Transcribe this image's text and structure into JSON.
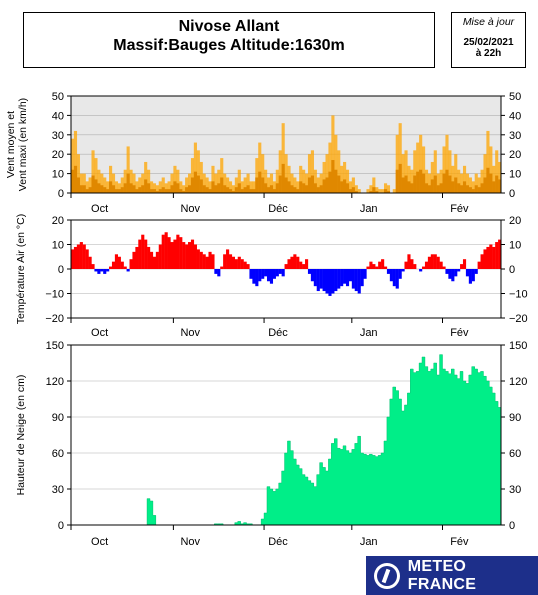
{
  "header": {
    "title_line1": "Nivose Allant",
    "title_line2": "Massif:Bauges Altitude:1630m",
    "update_label": "Mise à jour",
    "update_date": "25/02/2021",
    "update_time": "à 22h"
  },
  "logo": {
    "text": "METEO FRANCE",
    "icon": "meteo-france-logo-icon"
  },
  "chart_data": [
    {
      "type": "bar",
      "name": "wind",
      "ylabel_lines": [
        "Vent moyen et",
        "Vent maxi (en km/h)"
      ],
      "ylim": [
        0,
        50
      ],
      "yticks": [
        0,
        10,
        20,
        30,
        40,
        50
      ],
      "xtick_labels": [
        "Oct",
        "Nov",
        "Déc",
        "Jan",
        "Fév"
      ],
      "xtick_positions_days": [
        19,
        50,
        80,
        111,
        142
      ],
      "days": 147,
      "background": "#e8e8e8",
      "color": "#ffa500",
      "values_max": [
        28,
        32,
        20,
        10,
        10,
        6,
        8,
        22,
        18,
        12,
        10,
        8,
        6,
        14,
        10,
        6,
        5,
        8,
        12,
        24,
        12,
        10,
        6,
        8,
        10,
        16,
        12,
        6,
        5,
        4,
        6,
        8,
        5,
        6,
        10,
        14,
        12,
        6,
        4,
        8,
        10,
        18,
        26,
        22,
        16,
        10,
        8,
        6,
        14,
        10,
        12,
        18,
        10,
        8,
        6,
        4,
        8,
        12,
        6,
        8,
        10,
        6,
        6,
        18,
        26,
        20,
        12,
        8,
        10,
        6,
        12,
        22,
        36,
        20,
        14,
        10,
        8,
        6,
        14,
        12,
        10,
        20,
        22,
        12,
        8,
        10,
        16,
        20,
        26,
        40,
        30,
        22,
        14,
        16,
        12,
        6,
        8,
        4,
        2,
        0,
        0,
        2,
        4,
        8,
        3,
        2,
        2,
        5,
        4,
        0,
        2,
        30,
        36,
        20,
        22,
        14,
        12,
        22,
        26,
        30,
        24,
        12,
        10,
        16,
        22,
        10,
        12,
        24,
        30,
        22,
        14,
        20,
        12,
        10,
        14,
        10,
        8,
        6,
        10,
        8,
        12,
        20,
        32,
        24,
        14,
        22,
        16
      ],
      "values_mean": [
        12,
        14,
        8,
        4,
        4,
        2,
        3,
        9,
        7,
        5,
        4,
        3,
        2,
        6,
        4,
        2,
        2,
        3,
        5,
        10,
        5,
        4,
        2,
        3,
        4,
        7,
        5,
        2,
        2,
        1,
        2,
        3,
        2,
        2,
        4,
        6,
        5,
        2,
        1,
        3,
        4,
        8,
        11,
        9,
        7,
        4,
        3,
        2,
        6,
        4,
        5,
        8,
        4,
        3,
        2,
        1,
        3,
        5,
        2,
        3,
        4,
        2,
        2,
        8,
        11,
        8,
        5,
        3,
        4,
        2,
        5,
        9,
        15,
        8,
        6,
        4,
        3,
        2,
        6,
        5,
        4,
        8,
        9,
        5,
        3,
        4,
        7,
        8,
        11,
        17,
        12,
        9,
        6,
        7,
        5,
        2,
        3,
        1,
        0,
        0,
        0,
        0,
        1,
        3,
        1,
        0,
        0,
        2,
        1,
        0,
        0,
        12,
        15,
        8,
        9,
        6,
        5,
        9,
        11,
        12,
        10,
        5,
        4,
        7,
        9,
        4,
        5,
        10,
        12,
        9,
        6,
        8,
        5,
        4,
        6,
        4,
        3,
        2,
        4,
        3,
        5,
        8,
        13,
        10,
        6,
        9,
        7
      ]
    },
    {
      "type": "bar",
      "name": "temperature",
      "ylabel_lines": [
        "Température Air (en °C)"
      ],
      "ylim": [
        -20,
        20
      ],
      "yticks": [
        -20,
        -10,
        0,
        10,
        20
      ],
      "xtick_labels": [
        "Oct",
        "Nov",
        "Déc",
        "Jan",
        "Fév"
      ],
      "xtick_positions_days": [
        19,
        50,
        80,
        111,
        142
      ],
      "days": 147,
      "background": "#ffffff",
      "positive_color": "#ff0000",
      "negative_color": "#0000ff",
      "values": [
        8,
        9,
        10,
        11,
        10,
        8,
        5,
        2,
        -1,
        -2,
        -1,
        -2,
        -1,
        1,
        3,
        6,
        5,
        3,
        1,
        -1,
        4,
        7,
        9,
        12,
        14,
        12,
        9,
        7,
        5,
        7,
        10,
        14,
        15,
        13,
        11,
        12,
        14,
        13,
        11,
        10,
        11,
        12,
        10,
        8,
        7,
        6,
        5,
        7,
        6,
        -2,
        -3,
        1,
        6,
        8,
        6,
        5,
        4,
        5,
        4,
        3,
        2,
        -4,
        -6,
        -7,
        -5,
        -4,
        -3,
        -5,
        -6,
        -4,
        -3,
        -2,
        -3,
        2,
        4,
        5,
        6,
        5,
        3,
        2,
        4,
        -2,
        -5,
        -7,
        -9,
        -8,
        -9,
        -10,
        -11,
        -10,
        -9,
        -8,
        -7,
        -6,
        -7,
        -5,
        -8,
        -9,
        -10,
        -7,
        -4,
        1,
        3,
        2,
        1,
        3,
        4,
        1,
        -2,
        -5,
        -7,
        -8,
        -4,
        -1,
        3,
        6,
        4,
        2,
        0,
        -1,
        1,
        3,
        5,
        6,
        6,
        5,
        3,
        1,
        -2,
        -4,
        -5,
        -3,
        -1,
        2,
        4,
        -3,
        -6,
        -5,
        -2,
        3,
        6,
        8,
        9,
        10,
        9,
        11,
        12
      ]
    },
    {
      "type": "area",
      "name": "snow",
      "ylabel_lines": [
        "Hauteur de Neige (en cm)"
      ],
      "ylim": [
        0,
        150
      ],
      "yticks": [
        0,
        30,
        60,
        90,
        120,
        150
      ],
      "xtick_labels": [
        "Oct",
        "Nov",
        "Déc",
        "Jan",
        "Fév"
      ],
      "xtick_positions_days": [
        19,
        50,
        80,
        111,
        142
      ],
      "days": 147,
      "background": "#ffffff",
      "color": "#00ee88",
      "values": [
        0,
        0,
        0,
        0,
        0,
        0,
        0,
        0,
        0,
        0,
        0,
        0,
        0,
        0,
        0,
        0,
        0,
        0,
        0,
        0,
        0,
        0,
        0,
        0,
        0,
        0,
        22,
        20,
        8,
        0,
        0,
        0,
        0,
        0,
        0,
        0,
        0,
        0,
        0,
        0,
        0,
        0,
        0,
        0,
        0,
        0,
        0,
        0,
        0,
        1,
        1,
        1,
        0,
        0,
        0,
        0,
        2,
        3,
        1,
        2,
        1,
        1,
        0,
        0,
        0,
        5,
        10,
        32,
        30,
        28,
        30,
        35,
        45,
        60,
        70,
        62,
        55,
        50,
        47,
        42,
        40,
        37,
        35,
        32,
        42,
        52,
        48,
        45,
        55,
        68,
        72,
        64,
        63,
        66,
        62,
        60,
        63,
        68,
        74,
        60,
        59,
        58,
        59,
        58,
        57,
        58,
        60,
        70,
        90,
        105,
        115,
        112,
        105,
        95,
        100,
        110,
        130,
        127,
        128,
        135,
        140,
        132,
        128,
        130,
        135,
        125,
        142,
        130,
        128,
        126,
        130,
        125,
        122,
        128,
        120,
        118,
        125,
        132,
        130,
        127,
        128,
        124,
        120,
        115,
        110,
        103,
        98
      ]
    }
  ]
}
